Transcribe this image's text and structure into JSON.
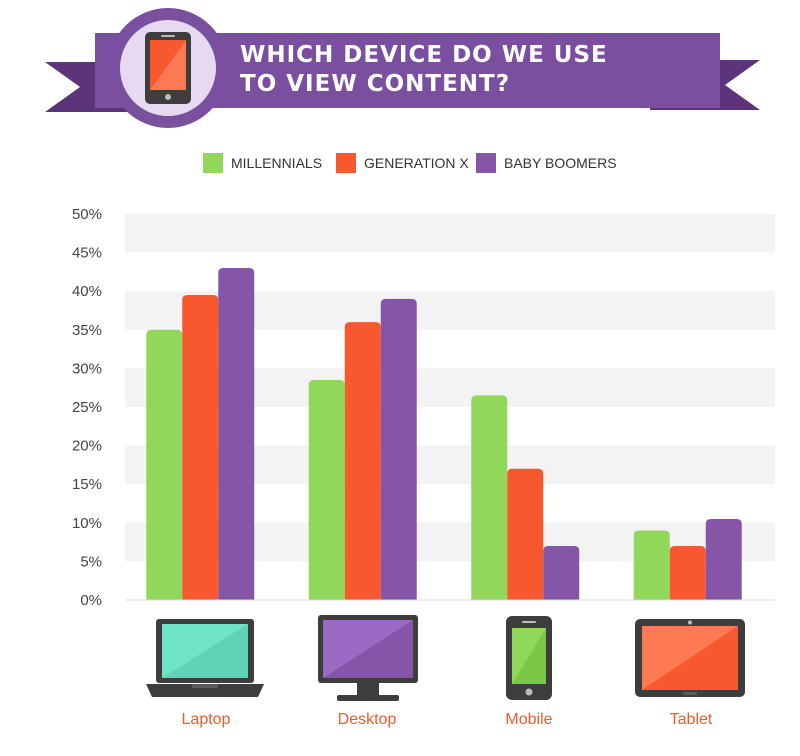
{
  "header": {
    "title_line1": "WHICH DEVICE DO WE USE",
    "title_line2": "TO VIEW CONTENT?",
    "icon": "smartphone-icon"
  },
  "colors": {
    "banner": "#7b4fa0",
    "banner_dark": "#5b3479",
    "badge_ring": "#e7d9f1",
    "millennials": "#8fd85a",
    "generation_x": "#f8582d",
    "baby_boomers": "#8556a8",
    "grid_band": "#f3f3f3",
    "category_label": "#f15a2b"
  },
  "legend": [
    {
      "name": "MILLENNIALS",
      "color": "#8fd85a"
    },
    {
      "name": "GENERATION X",
      "color": "#f8582d"
    },
    {
      "name": "BABY BOOMERS",
      "color": "#8556a8"
    }
  ],
  "chart_data": {
    "type": "bar",
    "title": "WHICH DEVICE DO WE USE TO VIEW CONTENT?",
    "categories": [
      "Laptop",
      "Desktop",
      "Mobile",
      "Tablet"
    ],
    "series": [
      {
        "name": "MILLENNIALS",
        "values": [
          35,
          28.5,
          26.5,
          9
        ]
      },
      {
        "name": "GENERATION X",
        "values": [
          39.5,
          36,
          17,
          7
        ]
      },
      {
        "name": "BABY BOOMERS",
        "values": [
          43,
          39,
          7,
          10.5
        ]
      }
    ],
    "ylim": [
      0,
      50
    ],
    "yticks": [
      "0%",
      "5%",
      "10%",
      "15%",
      "20%",
      "25%",
      "30%",
      "35%",
      "40%",
      "45%",
      "50%"
    ],
    "legend_position": "top",
    "grid": true
  },
  "devices": [
    {
      "label": "Laptop",
      "icon": "laptop-icon"
    },
    {
      "label": "Desktop",
      "icon": "desktop-monitor-icon"
    },
    {
      "label": "Mobile",
      "icon": "smartphone-icon"
    },
    {
      "label": "Tablet",
      "icon": "tablet-icon"
    }
  ]
}
